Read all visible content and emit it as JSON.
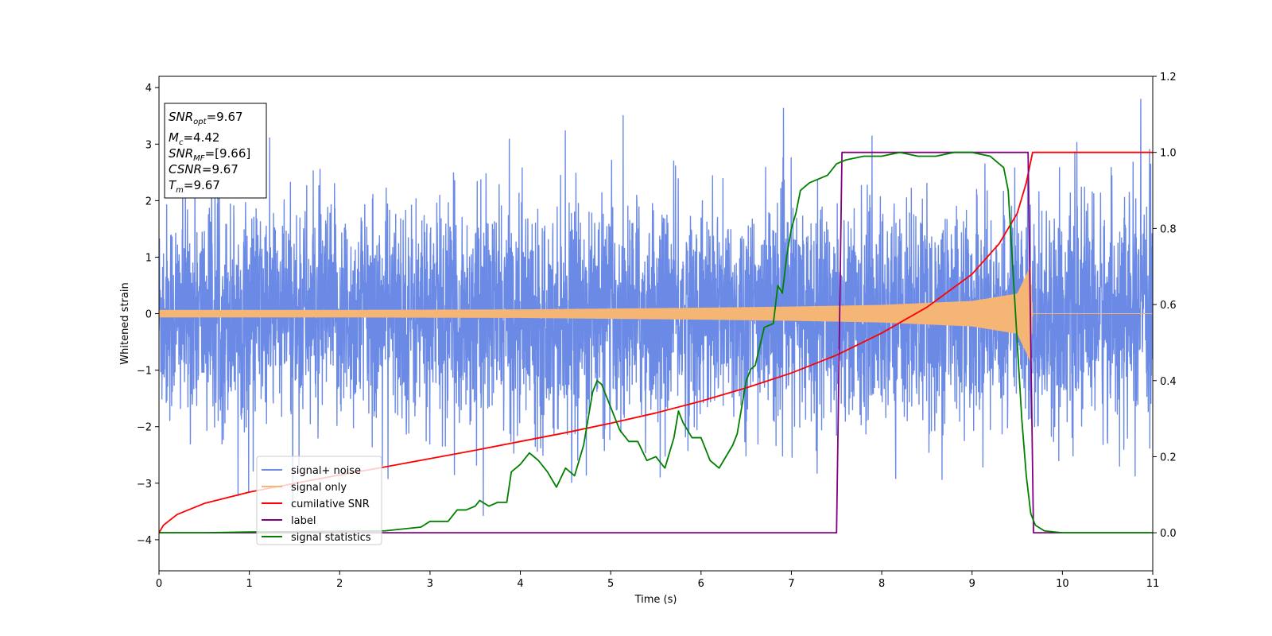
{
  "chart_data": {
    "type": "line",
    "xlabel": "Time (s)",
    "ylabel": "Whitened strain",
    "xlim": [
      0,
      11
    ],
    "ylim": [
      -4.55,
      4.2
    ],
    "y2lim": [
      -0.1,
      1.2
    ],
    "x_ticks": [
      0,
      1,
      2,
      3,
      4,
      5,
      6,
      7,
      8,
      9,
      10,
      11
    ],
    "y_ticks": [
      -4,
      -3,
      -2,
      -1,
      0,
      1,
      2,
      3,
      4
    ],
    "y_tick_labels": [
      "−4",
      "−3",
      "−2",
      "−1",
      "0",
      "1",
      "2",
      "3",
      "4"
    ],
    "y2_ticks": [
      0.0,
      0.2,
      0.4,
      0.6,
      0.8,
      1.0,
      1.2
    ],
    "y2_tick_labels": [
      "0.0",
      "0.2",
      "0.4",
      "0.6",
      "0.8",
      "1.0",
      "1.2"
    ],
    "grid": false,
    "legend_position": "lower-left",
    "annotation": {
      "snr_opt": "9.67",
      "mc": "4.42",
      "snr_mf": "[9.66]",
      "csnr": "9.67",
      "tm": "9.67"
    },
    "series": [
      {
        "name": "signal+ noise",
        "color": "#6b8ae6",
        "axis": "left",
        "noise_std": 0.95,
        "envelope": [
          [
            0,
            1.8
          ],
          [
            11,
            1.8
          ]
        ]
      },
      {
        "name": "signal only",
        "color": "#f5b575",
        "axis": "left",
        "end_time": 9.67,
        "envelope": [
          [
            0,
            0.06
          ],
          [
            2,
            0.06
          ],
          [
            4,
            0.07
          ],
          [
            6,
            0.1
          ],
          [
            7,
            0.12
          ],
          [
            8,
            0.15
          ],
          [
            9,
            0.22
          ],
          [
            9.5,
            0.35
          ],
          [
            9.65,
            0.85
          ],
          [
            9.67,
            0.0
          ]
        ]
      },
      {
        "name": "cumilative SNR",
        "color": "#ff0000",
        "axis": "right",
        "x": [
          0,
          0.05,
          0.2,
          0.5,
          1,
          1.5,
          2,
          2.5,
          3,
          3.5,
          4,
          4.5,
          5,
          5.5,
          6,
          6.5,
          7,
          7.5,
          8,
          8.5,
          9,
          9.3,
          9.5,
          9.6,
          9.67,
          11
        ],
        "y": [
          0.0,
          0.02,
          0.048,
          0.077,
          0.107,
          0.13,
          0.152,
          0.173,
          0.195,
          0.217,
          0.24,
          0.263,
          0.288,
          0.315,
          0.346,
          0.381,
          0.42,
          0.467,
          0.525,
          0.593,
          0.68,
          0.76,
          0.84,
          0.92,
          1.0,
          1.0
        ]
      },
      {
        "name": "label",
        "color": "#800080",
        "axis": "right",
        "x": [
          0,
          7.5,
          7.56,
          9.62,
          9.68,
          11
        ],
        "y": [
          0.0,
          0.0,
          1.0,
          1.0,
          0.0,
          0.0
        ]
      },
      {
        "name": "signal statistics",
        "color": "#008000",
        "axis": "right",
        "x": [
          0,
          0.5,
          1,
          1.5,
          2,
          2.5,
          2.7,
          2.9,
          3.0,
          3.2,
          3.3,
          3.4,
          3.5,
          3.55,
          3.65,
          3.75,
          3.85,
          3.9,
          4.0,
          4.1,
          4.2,
          4.3,
          4.4,
          4.5,
          4.6,
          4.7,
          4.8,
          4.85,
          4.9,
          5.0,
          5.1,
          5.2,
          5.3,
          5.4,
          5.5,
          5.6,
          5.7,
          5.75,
          5.8,
          5.9,
          6.0,
          6.1,
          6.2,
          6.25,
          6.35,
          6.4,
          6.5,
          6.55,
          6.6,
          6.7,
          6.8,
          6.85,
          6.9,
          6.95,
          7.0,
          7.05,
          7.1,
          7.2,
          7.3,
          7.4,
          7.5,
          7.6,
          7.8,
          8.0,
          8.2,
          8.4,
          8.6,
          8.8,
          9.0,
          9.2,
          9.3,
          9.35,
          9.4,
          9.45,
          9.5,
          9.55,
          9.6,
          9.65,
          9.7,
          9.8,
          10.0,
          10.5,
          11
        ],
        "y": [
          0.0,
          0.0,
          0.002,
          0.003,
          0.004,
          0.005,
          0.01,
          0.015,
          0.03,
          0.03,
          0.06,
          0.06,
          0.07,
          0.085,
          0.07,
          0.08,
          0.08,
          0.16,
          0.18,
          0.21,
          0.19,
          0.16,
          0.12,
          0.17,
          0.15,
          0.23,
          0.37,
          0.4,
          0.39,
          0.33,
          0.27,
          0.24,
          0.24,
          0.19,
          0.2,
          0.17,
          0.25,
          0.32,
          0.29,
          0.25,
          0.25,
          0.19,
          0.17,
          0.19,
          0.23,
          0.26,
          0.4,
          0.43,
          0.44,
          0.54,
          0.55,
          0.65,
          0.63,
          0.73,
          0.8,
          0.84,
          0.9,
          0.92,
          0.93,
          0.94,
          0.97,
          0.98,
          0.99,
          0.99,
          1.0,
          0.99,
          0.99,
          1.0,
          1.0,
          0.99,
          0.97,
          0.96,
          0.9,
          0.7,
          0.5,
          0.3,
          0.15,
          0.05,
          0.02,
          0.005,
          0.0,
          0.0,
          0.0
        ]
      }
    ]
  }
}
